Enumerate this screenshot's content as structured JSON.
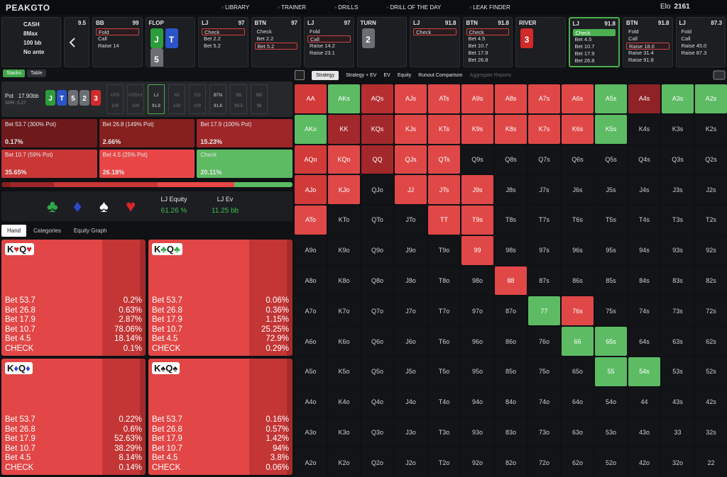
{
  "nav": {
    "logo": "PEAKGTO",
    "items": [
      "LIBRARY",
      "TRAINER",
      "DRILLS",
      "DRILL OF THE DAY",
      "LEAK FINDER"
    ],
    "elo_label": "Elo",
    "elo": "2161"
  },
  "game": [
    "CASH",
    "8Max",
    "100 bb",
    "No ante"
  ],
  "prev_stub": "9.5",
  "columns": [
    {
      "player": "BB",
      "stack": "99",
      "options": [
        "Fold",
        "Call",
        "Raise 14"
      ],
      "chosen": 0
    },
    {
      "street": "FLOP",
      "cards": [
        {
          "rank": "J",
          "color": "#2c9c3c"
        },
        {
          "rank": "T",
          "color": "#2a54c8"
        },
        {
          "rank": "5",
          "color": "#6b6e73"
        }
      ]
    },
    {
      "player": "LJ",
      "stack": "97",
      "options": [
        "Check",
        "Bet 2.2",
        "Bet 5.2"
      ],
      "chosen": 0
    },
    {
      "player": "BTN",
      "stack": "97",
      "options": [
        "Check",
        "Bet 2.2",
        "Bet 5.2"
      ],
      "chosen": 2
    },
    {
      "player": "LJ",
      "stack": "97",
      "options": [
        "Fold",
        "Call",
        "Raise 14.2",
        "Raise 23.1"
      ],
      "chosen": 1
    },
    {
      "street": "TURN",
      "cards": [
        {
          "rank": "2",
          "color": "#6b6e73"
        }
      ]
    },
    {
      "player": "LJ",
      "stack": "91.8",
      "options": [
        "Check"
      ],
      "chosen": 0
    },
    {
      "player": "BTN",
      "stack": "91.8",
      "options": [
        "Check",
        "Bet 4.5",
        "Bet 10.7",
        "Bet 17.9",
        "Bet 26.8"
      ],
      "chosen": 0
    },
    {
      "street": "RIVER",
      "cards": [
        {
          "rank": "3",
          "color": "#d12a2a"
        }
      ]
    },
    {
      "player": "LJ",
      "stack": "91.8",
      "options": [
        "Check",
        "Bet 4.5",
        "Bet 10.7",
        "Bet 17.9",
        "Bet 26.8"
      ],
      "chosen": 0,
      "selected": true
    },
    {
      "player": "BTN",
      "stack": "91.8",
      "options": [
        "Fold",
        "Call",
        "Raise 18.0",
        "Raise 31.4",
        "Raise 91.8"
      ],
      "chosen": 2
    },
    {
      "player": "LJ",
      "stack": "87.3",
      "options": [
        "Fold",
        "Call",
        "Raise 45.0",
        "Raise 87.3"
      ],
      "chosen": -1
    }
  ],
  "left_tabs": [
    "Stacks",
    "Table"
  ],
  "pot": {
    "label": "Pot",
    "amount": "17.90bb",
    "spr": "SPR: 5.27",
    "board": [
      {
        "rank": "J",
        "color": "#2c9c3c"
      },
      {
        "rank": "T",
        "color": "#2a54c8"
      },
      {
        "rank": "5",
        "color": "#6b6e73"
      },
      {
        "rank": "2",
        "color": "#6b6e73"
      },
      {
        "rank": "3",
        "color": "#d12a2a"
      }
    ],
    "seats": [
      {
        "pos": "UTG",
        "stack": "100"
      },
      {
        "pos": "UTG+1",
        "stack": "100"
      },
      {
        "pos": "LJ",
        "stack": "91.8",
        "active": true
      },
      {
        "pos": "HJ",
        "stack": "100"
      },
      {
        "pos": "CO",
        "stack": "100"
      },
      {
        "pos": "BTN",
        "stack": "91.8",
        "live": true
      },
      {
        "pos": "SB",
        "stack": "99.5"
      },
      {
        "pos": "BB",
        "stack": "98"
      }
    ]
  },
  "summary": [
    {
      "label": "Bet 53.7 (300% Pot)",
      "freq": 0.17,
      "freq_label": "0.17%",
      "color": "#6e1a1d"
    },
    {
      "label": "Bet 26.8 (149% Pot)",
      "freq": 2.66,
      "freq_label": "2.66%",
      "color": "#85201f"
    },
    {
      "label": "Bet 17.9 (100% Pot)",
      "freq": 15.23,
      "freq_label": "15.23%",
      "color": "#9e2629"
    },
    {
      "label": "Bet 10.7 (59% Pot)",
      "freq": 35.65,
      "freq_label": "35.65%",
      "color": "#c93636"
    },
    {
      "label": "Bet 4.5 (25% Pot)",
      "freq": 26.18,
      "freq_label": "26.18%",
      "color": "#e84646"
    },
    {
      "label": "Check",
      "freq": 20.11,
      "freq_label": "20.11%",
      "color": "#5dbb63"
    }
  ],
  "suits": [
    {
      "symbol": "♣",
      "color": "#2ea84a"
    },
    {
      "symbol": "♦",
      "color": "#2a48d0"
    },
    {
      "symbol": "♠",
      "color": "#ffffff"
    },
    {
      "symbol": "♥",
      "color": "#d8262c"
    }
  ],
  "equity": {
    "label": "LJ Equity",
    "value": "61.26 %"
  },
  "ev": {
    "label": "LJ Ev",
    "value": "11.25 bb"
  },
  "hand_tabs": [
    "Hand",
    "Categories",
    "Equity Graph"
  ],
  "hands": [
    {
      "cards": [
        {
          "rank": "K",
          "suit": "♥"
        },
        {
          "rank": "Q",
          "suit": "♥"
        }
      ],
      "suit_color": "#d8262c",
      "rows": [
        [
          "Bet 53.7",
          "0.2%"
        ],
        [
          "Bet 26.8",
          "0.63%"
        ],
        [
          "Bet 17.9",
          "2.87%"
        ],
        [
          "Bet 10.7",
          "78.06%"
        ],
        [
          "Bet 4.5",
          "18.14%"
        ],
        [
          "CHECK",
          "0.1%"
        ]
      ]
    },
    {
      "cards": [
        {
          "rank": "K",
          "suit": "♣"
        },
        {
          "rank": "Q",
          "suit": "♣"
        }
      ],
      "suit_color": "#2ea84a",
      "rows": [
        [
          "Bet 53.7",
          "0.06%"
        ],
        [
          "Bet 26.8",
          "0.36%"
        ],
        [
          "Bet 17.9",
          "1.15%"
        ],
        [
          "Bet 10.7",
          "25.25%"
        ],
        [
          "Bet 4.5",
          "72.9%"
        ],
        [
          "CHECK",
          "0.29%"
        ]
      ]
    },
    {
      "cards": [
        {
          "rank": "K",
          "suit": "♦"
        },
        {
          "rank": "Q",
          "suit": "♦"
        }
      ],
      "suit_color": "#2a48d0",
      "rows": [
        [
          "Bet 53.7",
          "0.22%"
        ],
        [
          "Bet 26.8",
          "0.6%"
        ],
        [
          "Bet 17.9",
          "52.63%"
        ],
        [
          "Bet 10.7",
          "38.29%"
        ],
        [
          "Bet 4.5",
          "8.14%"
        ],
        [
          "CHECK",
          "0.14%"
        ]
      ]
    },
    {
      "cards": [
        {
          "rank": "K",
          "suit": "♠"
        },
        {
          "rank": "Q",
          "suit": "♠"
        }
      ],
      "suit_color": "#222222",
      "rows": [
        [
          "Bet 53.7",
          "0.16%"
        ],
        [
          "Bet 26.8",
          "0.57%"
        ],
        [
          "Bet 17.9",
          "1.42%"
        ],
        [
          "Bet 10.7",
          "94%"
        ],
        [
          "Bet 4.5",
          "3.8%"
        ],
        [
          "CHECK",
          "0.06%"
        ]
      ]
    }
  ],
  "right_tabs": [
    "Strategy",
    "Strategy + EV",
    "EV",
    "Equity",
    "Runout Comparison",
    "Aggregate Reports"
  ],
  "grid": {
    "labels": [
      [
        "AA",
        "AKs",
        "AQs",
        "AJs",
        "ATs",
        "A9s",
        "A8s",
        "A7s",
        "A6s",
        "A5s",
        "A4s",
        "A3s",
        "A2s"
      ],
      [
        "AKo",
        "KK",
        "KQs",
        "KJs",
        "KTs",
        "K9s",
        "K8s",
        "K7s",
        "K6s",
        "K5s",
        "K4s",
        "K3s",
        "K2s"
      ],
      [
        "AQo",
        "KQo",
        "QQ",
        "QJs",
        "QTs",
        "Q9s",
        "Q8s",
        "Q7s",
        "Q6s",
        "Q5s",
        "Q4s",
        "Q3s",
        "Q2s"
      ],
      [
        "AJo",
        "KJo",
        "QJo",
        "JJ",
        "JTs",
        "J9s",
        "J8s",
        "J7s",
        "J6s",
        "J5s",
        "J4s",
        "J3s",
        "J2s"
      ],
      [
        "ATo",
        "KTo",
        "QTo",
        "JTo",
        "TT",
        "T9s",
        "T8s",
        "T7s",
        "T6s",
        "T5s",
        "T4s",
        "T3s",
        "T2s"
      ],
      [
        "A9o",
        "K9o",
        "Q9o",
        "J9o",
        "T9o",
        "99",
        "98s",
        "97s",
        "96s",
        "95s",
        "94s",
        "93s",
        "92s"
      ],
      [
        "A8o",
        "K8o",
        "Q8o",
        "J8o",
        "T8o",
        "98o",
        "88",
        "87s",
        "86s",
        "85s",
        "84s",
        "83s",
        "82s"
      ],
      [
        "A7o",
        "K7o",
        "Q7o",
        "J7o",
        "T7o",
        "97o",
        "87o",
        "77",
        "76s",
        "75s",
        "74s",
        "73s",
        "72s"
      ],
      [
        "A6o",
        "K6o",
        "Q6o",
        "J6o",
        "T6o",
        "96o",
        "86o",
        "76o",
        "66",
        "65s",
        "64s",
        "63s",
        "62s"
      ],
      [
        "A5o",
        "K5o",
        "Q5o",
        "J5o",
        "T5o",
        "95o",
        "85o",
        "75o",
        "65o",
        "55",
        "54s",
        "53s",
        "52s"
      ],
      [
        "A4o",
        "K4o",
        "Q4o",
        "J4o",
        "T4o",
        "94o",
        "84o",
        "74o",
        "64o",
        "54o",
        "44",
        "43s",
        "42s"
      ],
      [
        "A3o",
        "K3o",
        "Q3o",
        "J3o",
        "T3o",
        "93o",
        "83o",
        "73o",
        "63o",
        "53o",
        "43o",
        "33",
        "32s"
      ],
      [
        "A2o",
        "K2o",
        "Q2o",
        "J2o",
        "T2o",
        "92o",
        "82o",
        "72o",
        "62o",
        "52o",
        "42o",
        "32o",
        "22"
      ]
    ],
    "fills": [
      [
        "#d23a3a",
        "#5dbb63",
        "#b52e30",
        "#e04848",
        "#e04848",
        "#e04848",
        "#e04848",
        "#e04848",
        "#e04848",
        "#5dbb63",
        "#8e2226",
        "#5dbb63",
        "#5dbb63"
      ],
      [
        "#5dbb63",
        "#a3282c",
        "#a3282c",
        "#e04848",
        "#e04848",
        "#e04848",
        "#e04848",
        "#e04848",
        "#e04848",
        "#5dbb63",
        null,
        null,
        null
      ],
      [
        "#d23a3a",
        "#e04848",
        "#a3282c",
        "#e04848",
        "#e04848",
        null,
        null,
        null,
        null,
        null,
        null,
        null,
        null
      ],
      [
        "#d23a3a",
        "#e04848",
        null,
        "#e04848",
        "#e04848",
        "#e04848",
        null,
        null,
        null,
        null,
        null,
        null,
        null
      ],
      [
        "#e04848",
        null,
        null,
        null,
        "#e04848",
        "#e04848",
        null,
        null,
        null,
        null,
        null,
        null,
        null
      ],
      [
        null,
        null,
        null,
        null,
        null,
        "#e04848",
        null,
        null,
        null,
        null,
        null,
        null,
        null
      ],
      [
        null,
        null,
        null,
        null,
        null,
        null,
        "#e04848",
        null,
        null,
        null,
        null,
        null,
        null
      ],
      [
        null,
        null,
        null,
        null,
        null,
        null,
        null,
        "#5dbb63",
        "#e04848",
        null,
        null,
        null,
        null
      ],
      [
        null,
        null,
        null,
        null,
        null,
        null,
        null,
        null,
        "#5dbb63",
        "#5dbb63",
        null,
        null,
        null
      ],
      [
        null,
        null,
        null,
        null,
        null,
        null,
        null,
        null,
        null,
        "#5dbb63",
        "#5dbb63",
        null,
        null
      ],
      [
        null,
        null,
        null,
        null,
        null,
        null,
        null,
        null,
        null,
        null,
        null,
        null,
        null
      ],
      [
        null,
        null,
        null,
        null,
        null,
        null,
        null,
        null,
        null,
        null,
        null,
        null,
        null
      ],
      [
        null,
        null,
        null,
        null,
        null,
        null,
        null,
        null,
        null,
        null,
        null,
        null,
        null
      ]
    ]
  }
}
